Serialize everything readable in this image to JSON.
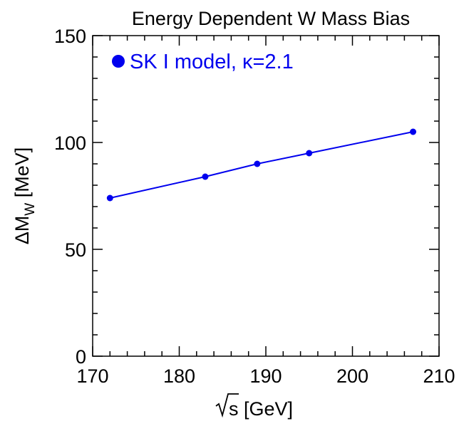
{
  "chart_data": {
    "type": "line",
    "title": "Energy Dependent W Mass Bias",
    "xlabel_sqrt": "s",
    "xlabel_rest": " [GeV]",
    "ylabel_main": "ΔM",
    "ylabel_sub": "W",
    "ylabel_rest": " [MeV]",
    "xlim": [
      170,
      210
    ],
    "ylim": [
      0,
      150
    ],
    "xticks": [
      170,
      180,
      190,
      200,
      210
    ],
    "yticks": [
      0,
      50,
      100,
      150
    ],
    "xminor_step": 2,
    "yminor_step": 10,
    "grid": false,
    "legend_position": "top-left",
    "series": [
      {
        "name": "SK I model,  κ=2.1",
        "color": "#0000ee",
        "marker": "circle",
        "x": [
          172,
          183,
          189,
          195,
          207
        ],
        "y": [
          74,
          84,
          90,
          95,
          105
        ]
      }
    ]
  }
}
